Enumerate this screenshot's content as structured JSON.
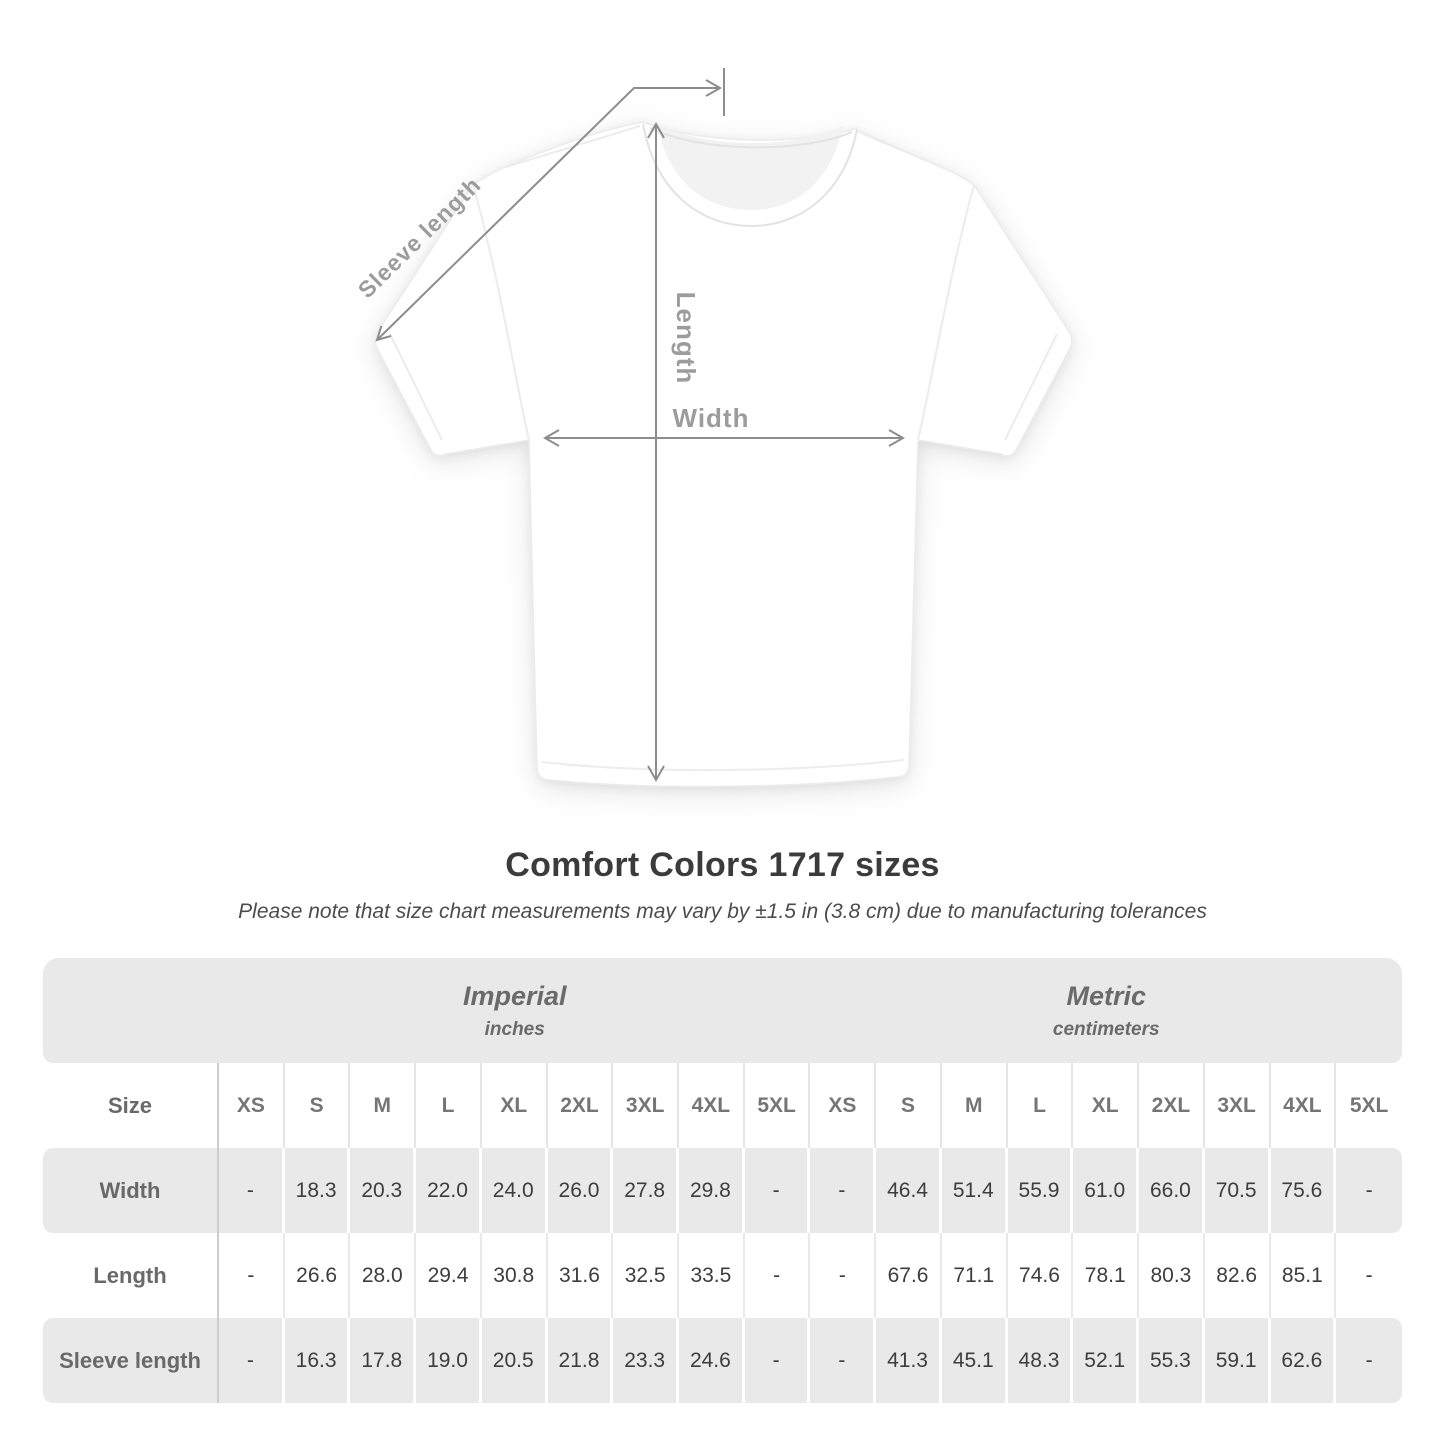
{
  "diagram": {
    "labels": {
      "sleeve": "Sleeve length",
      "length": "Length",
      "width": "Width"
    }
  },
  "title": "Comfort Colors 1717 sizes",
  "note": "Please note that size chart measurements may vary by ±1.5 in (3.8 cm) due to manufacturing tolerances",
  "chart_data": {
    "type": "table",
    "groups": [
      {
        "label": "Imperial",
        "unit": "inches"
      },
      {
        "label": "Metric",
        "unit": "centimeters"
      }
    ],
    "size_header": "Size",
    "sizes": [
      "XS",
      "S",
      "M",
      "L",
      "XL",
      "2XL",
      "3XL",
      "4XL",
      "5XL"
    ],
    "rows": [
      {
        "label": "Width",
        "imperial": [
          "-",
          "18.3",
          "20.3",
          "22.0",
          "24.0",
          "26.0",
          "27.8",
          "29.8",
          "-"
        ],
        "metric": [
          "-",
          "46.4",
          "51.4",
          "55.9",
          "61.0",
          "66.0",
          "70.5",
          "75.6",
          "-"
        ]
      },
      {
        "label": "Length",
        "imperial": [
          "-",
          "26.6",
          "28.0",
          "29.4",
          "30.8",
          "31.6",
          "32.5",
          "33.5",
          "-"
        ],
        "metric": [
          "-",
          "67.6",
          "71.1",
          "74.6",
          "78.1",
          "80.3",
          "82.6",
          "85.1",
          "-"
        ]
      },
      {
        "label": "Sleeve length",
        "imperial": [
          "-",
          "16.3",
          "17.8",
          "19.0",
          "20.5",
          "21.8",
          "23.3",
          "24.6",
          "-"
        ],
        "metric": [
          "-",
          "41.3",
          "45.1",
          "48.3",
          "52.1",
          "55.3",
          "59.1",
          "62.6",
          "-"
        ]
      }
    ]
  },
  "colors": {
    "band_gray": "#e9e9e9",
    "arrow_gray": "#8d8d8d",
    "label_gray": "#9c9c9c",
    "title_text": "#3b3b3b",
    "data_text": "#3d3d3d"
  }
}
